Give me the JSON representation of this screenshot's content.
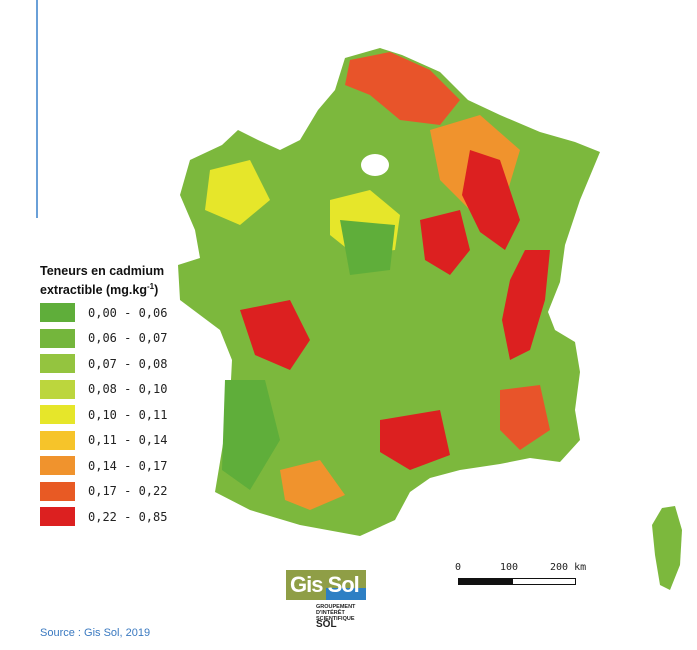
{
  "legend": {
    "title_line1": "Teneurs en cadmium",
    "title_line2": "extractible (mg.kg",
    "title_sup": "-1",
    "title_end": ")",
    "items": [
      {
        "label": "0,00 - 0,06",
        "color": "#5fae3a"
      },
      {
        "label": "0,06 - 0,07",
        "color": "#74b63c"
      },
      {
        "label": "0,07 - 0,08",
        "color": "#94c43f"
      },
      {
        "label": "0,08 - 0,10",
        "color": "#bcd63d"
      },
      {
        "label": "0,10 - 0,11",
        "color": "#e6e62a"
      },
      {
        "label": "0,11 - 0,14",
        "color": "#f6c42a"
      },
      {
        "label": "0,14 - 0,17",
        "color": "#f0932d"
      },
      {
        "label": "0,17 - 0,22",
        "color": "#e85a24"
      },
      {
        "label": "0,22 - 0,85",
        "color": "#dc2020"
      }
    ]
  },
  "scale": {
    "l0": "0",
    "l1": "100",
    "l2": "200 km"
  },
  "logo": {
    "text": "Gis Sol",
    "line1": "GROUPEMENT",
    "line2": "D'INTÉRÊT",
    "line3": "SCIENTIFIQUE",
    "sol": "SOL"
  },
  "source": "Source : Gis Sol, 2019",
  "colors": {
    "accent_line": "#6aa0d8",
    "source_text": "#3a79c0"
  }
}
